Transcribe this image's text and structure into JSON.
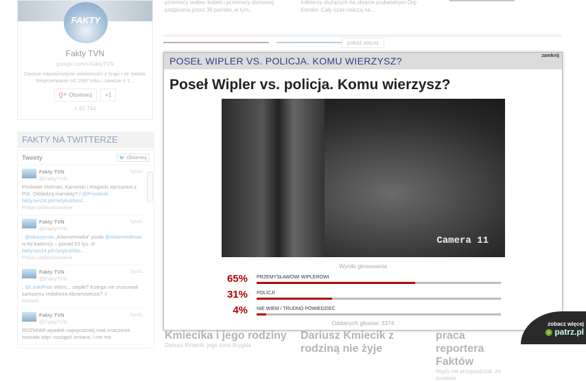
{
  "gplus": {
    "logo": "FAKTY",
    "name": "Fakty TVN",
    "url": "google.com/+FaktyTVN",
    "description": "Zawsze najważniejsze wiadomości z kraju i ze świata. Nieprzerwanie od 1997 roku i zawsze o 1...",
    "follow": "Obserwuj",
    "plusone": "+1",
    "count": "+ 83 744"
  },
  "twitter": {
    "header": "FAKTY NA TWITTERZE",
    "tweets_label": "Tweety",
    "follow": "Obserwuj",
    "tweets": [
      {
        "name": "Fakty TVN",
        "handle": "@FaktyTVN",
        "time": "5godz.",
        "text": "Posłowie Hofman, Kamiński i Rogacki wyrzuceni z PiS. Oddadzą mandaty? / ",
        "mention": "@Prosiecki",
        "link": "fakty.tvn24.pl/r/artykul/posl...",
        "summary": "Pokaż podsumowanie"
      },
      {
        "name": "Fakty TVN",
        "handle": "@FaktyTVN",
        "time": "5godz.",
        "text_pre": ". ",
        "mention": "@skorzynski",
        "text": " „Kilometrówka\" posła ",
        "mention2": "@AdamHofman",
        "text2": " w tej kadencji – ponad 53 tys. zł",
        "link": "fakty.tvn24.pl/r/artykul/kilo...",
        "summary": "Pokaż podsumowanie"
      },
      {
        "name": "Fakty TVN",
        "handle": "@FaktyTVN",
        "time": "5godz.",
        "text_pre": ". ",
        "mention": "@LeskiPiotr",
        "text": " ekhm... ciepłe? Kolega nie zrozumiał sarkazmu redaktora Abramowicza? :)",
        "summary": "Rozwiń"
      },
      {
        "name": "Fakty TVN",
        "handle": "@FaktyTVN",
        "time": "5godz.",
        "text": "ROZMIAR wpadek najwyraźniej miał znaczenie, musiała więc nastąpić zmiana, i nie ma"
      }
    ]
  },
  "top_news": [
    "przemocy wobec kobiet i przemocy domowej, podpisana przez 36 państw, w tym...",
    "żołnierzy służących na okręcie podwodnym Orp Kondor. Cały czas ćwiczą na..."
  ],
  "show_more": "pokaż więcej",
  "poll": {
    "header": "POSEŁ WIPLER VS. POLICJA. KOMU WIERZYSZ?",
    "close": "zamknij",
    "title": "Poseł Wipler vs. policja. Komu wierzysz?",
    "video_caption": "Camera 11",
    "results_label": "Wyniki głosowania",
    "options": [
      {
        "pct": "65%",
        "value": 65,
        "label": "PRZEMYSŁAWOWI WIPLEROWI"
      },
      {
        "pct": "31%",
        "value": 31,
        "label": "POLICJI"
      },
      {
        "pct": "4%",
        "value": 4,
        "label": "NIE WIEM / TRUDNO POWIEDZIEĆ"
      }
    ],
    "votes": "Oddanych głosów: 3374",
    "accent": "#b30000"
  },
  "bottom_news": [
    {
      "title": "Kmiecika i jego rodziny",
      "sub": "Dariusz Kmiecik, jego żona Brygida"
    },
    {
      "title": "Dariusz Kmiecik z rodziną nie żyje",
      "sub": ""
    },
    {
      "title": "praca reportera Faktów",
      "sub": "Nigdy nie przypuszczał, że zostanie"
    }
  ],
  "patrz": {
    "more": "zobacz więcej",
    "brand": "patrz.pl"
  }
}
